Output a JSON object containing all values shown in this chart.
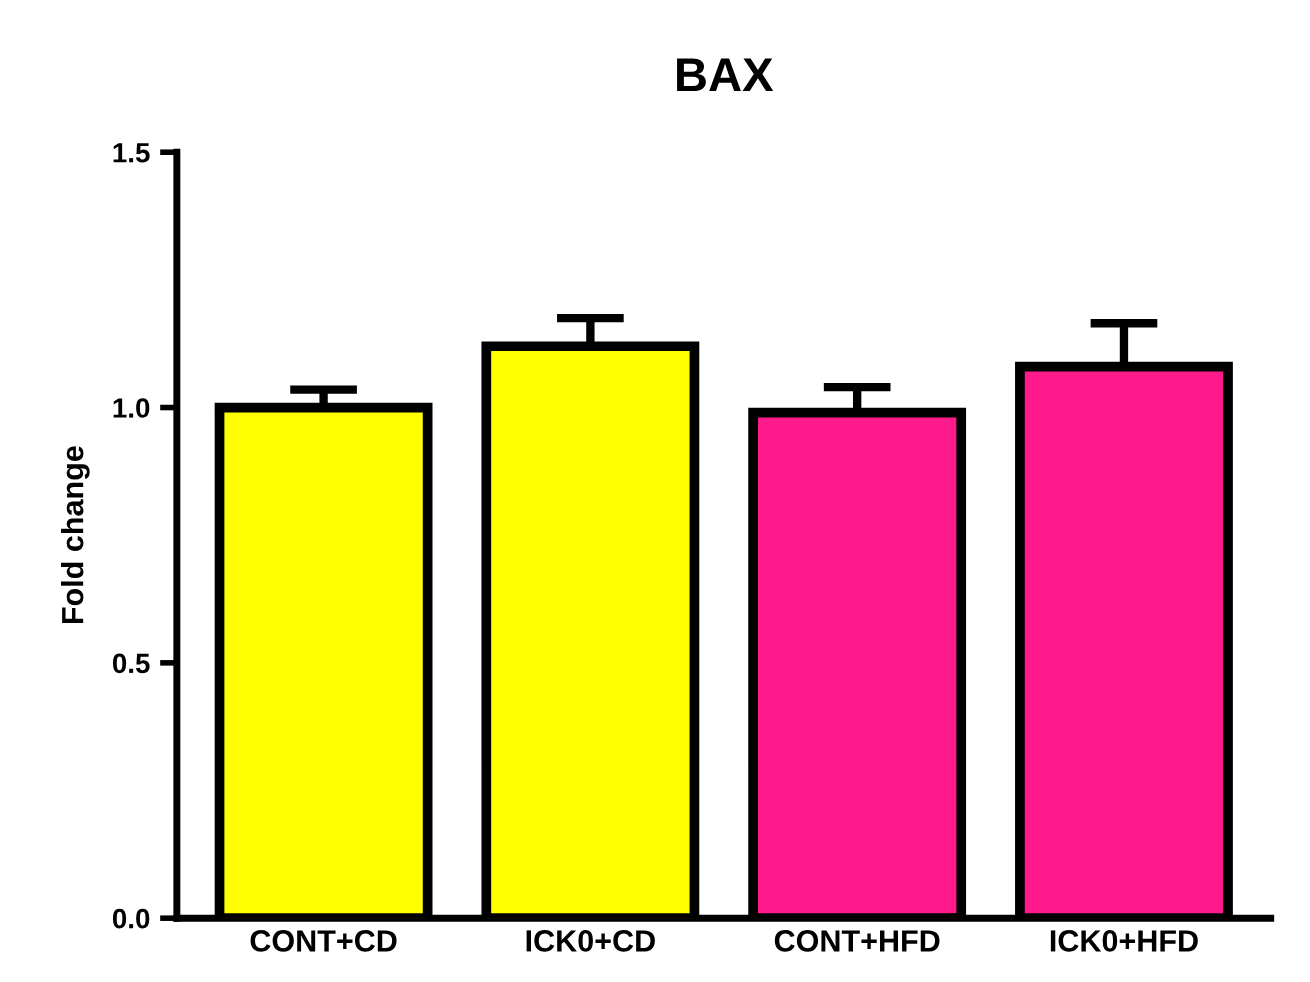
{
  "chart_data": {
    "type": "bar",
    "title": "BAX",
    "ylabel": "Fold change",
    "categories": [
      "CONT+CD",
      "ICK0+CD",
      "CONT+HFD",
      "ICK0+HFD"
    ],
    "values": [
      1.0,
      1.12,
      0.99,
      1.08
    ],
    "errors": [
      [
        1.0,
        1.035
      ],
      [
        1.12,
        1.175
      ],
      [
        0.99,
        1.04
      ],
      [
        1.08,
        1.165
      ]
    ],
    "colors": [
      "#ffff00",
      "#ffff00",
      "#ff1a8c",
      "#ff1a8c"
    ],
    "ylim": [
      0,
      1.5
    ],
    "yticks": [
      {
        "value": 0,
        "label": "0.0"
      },
      {
        "value": 0.5,
        "label": "0.5"
      },
      {
        "value": 1.0,
        "label": "1.0"
      },
      {
        "value": 1.5,
        "label": "1.5"
      }
    ],
    "grid": false,
    "legend": false
  }
}
